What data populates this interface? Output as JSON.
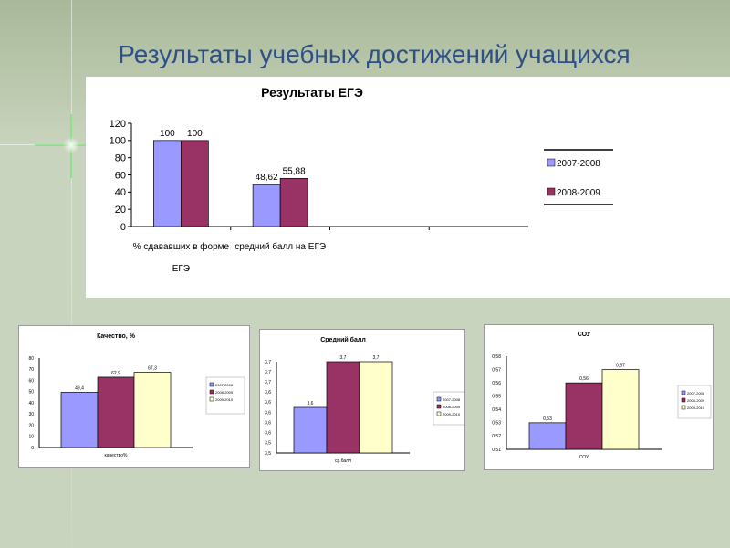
{
  "slide": {
    "title": "Результаты учебных достижений учащихся"
  },
  "colors": {
    "series": [
      "#9999ff",
      "#993366",
      "#ffffcc"
    ],
    "title": "#2e4f87"
  },
  "chart_data": [
    {
      "type": "bar",
      "title": "Результаты ЕГЭ",
      "categories": [
        [
          "% сдававших в форме",
          "ЕГЭ"
        ],
        [
          "средний балл на ЕГЭ"
        ],
        [
          ""
        ],
        [
          ""
        ]
      ],
      "series": [
        {
          "name": "2007-2008",
          "values": [
            100,
            48.62,
            null,
            null
          ],
          "labels": [
            "100",
            "48,62",
            "",
            ""
          ]
        },
        {
          "name": "2008-2009",
          "values": [
            100,
            55.88,
            null,
            null
          ],
          "labels": [
            "100",
            "55,88",
            "",
            ""
          ]
        }
      ],
      "yticks": [
        "0",
        "20",
        "40",
        "60",
        "80",
        "100",
        "120"
      ],
      "ylim": [
        0,
        120
      ],
      "legend_position": "right"
    },
    {
      "type": "bar",
      "title": "Качество, %",
      "categories": [
        [
          "качество%"
        ]
      ],
      "series": [
        {
          "name": "2007-2008",
          "values": [
            49.4
          ],
          "labels": [
            "49,4"
          ]
        },
        {
          "name": "2008-2009",
          "values": [
            62.9
          ],
          "labels": [
            "62,9"
          ]
        },
        {
          "name": "2009-2010",
          "values": [
            67.3
          ],
          "labels": [
            "67,3"
          ]
        }
      ],
      "yticks": [
        "0",
        "10",
        "20",
        "30",
        "40",
        "50",
        "60",
        "70",
        "80"
      ],
      "ylim": [
        0,
        80
      ],
      "legend_position": "right"
    },
    {
      "type": "bar",
      "title": "Средний балл",
      "categories": [
        [
          "ср.балл"
        ]
      ],
      "series": [
        {
          "name": "2007-2008",
          "values": [
            3.6
          ],
          "labels": [
            "3,6"
          ]
        },
        {
          "name": "2008-2009",
          "values": [
            3.7
          ],
          "labels": [
            "3,7"
          ]
        },
        {
          "name": "2009-2010",
          "values": [
            3.7
          ],
          "labels": [
            "3,7"
          ]
        }
      ],
      "yticks": [
        "3,5",
        "3,5",
        "3,6",
        "3,6",
        "3,6",
        "3,6",
        "3,6",
        "3,7",
        "3,7",
        "3,7"
      ],
      "ylim": [
        3.5,
        3.7
      ],
      "legend_position": "right"
    },
    {
      "type": "bar",
      "title": "СОУ",
      "categories": [
        [
          "СОУ"
        ]
      ],
      "series": [
        {
          "name": "2007-2008",
          "values": [
            0.53
          ],
          "labels": [
            "0,53"
          ]
        },
        {
          "name": "2008-2009",
          "values": [
            0.56
          ],
          "labels": [
            "0,56"
          ]
        },
        {
          "name": "2009-2010",
          "values": [
            0.57
          ],
          "labels": [
            "0,57"
          ]
        }
      ],
      "yticks": [
        "0,51",
        "0,52",
        "0,53",
        "0,54",
        "0,55",
        "0,56",
        "0,57",
        "0,58"
      ],
      "ylim": [
        0.51,
        0.58
      ],
      "legend_position": "right"
    }
  ]
}
